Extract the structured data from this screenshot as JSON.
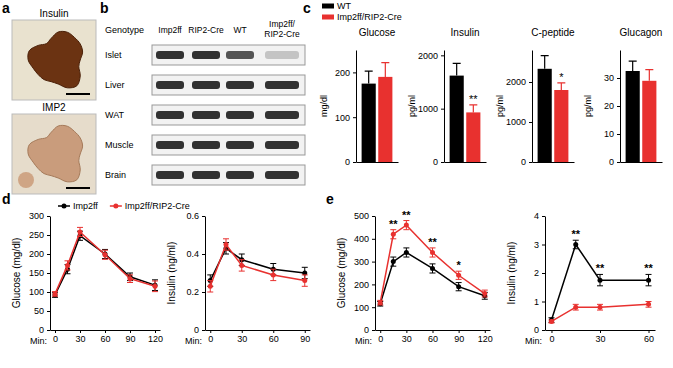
{
  "panel_labels": [
    "a",
    "b",
    "c",
    "d",
    "e"
  ],
  "histology": {
    "images": [
      {
        "title": "Insulin"
      },
      {
        "title": "IMP2"
      }
    ]
  },
  "blot": {
    "header": "Genotype",
    "columns": [
      "Imp2ff",
      "RIP2-Cre",
      "WT",
      "Imp2ff/RIP2-Cre"
    ],
    "rows": [
      {
        "tissue": "Islet",
        "band_intensity": [
          0.85,
          0.85,
          0.7,
          0.2
        ]
      },
      {
        "tissue": "Liver",
        "band_intensity": [
          0.85,
          0.85,
          0.85,
          0.85
        ]
      },
      {
        "tissue": "WAT",
        "band_intensity": [
          0.85,
          0.85,
          0.85,
          0.85
        ]
      },
      {
        "tissue": "Muscle",
        "band_intensity": [
          0.85,
          0.85,
          0.85,
          0.85
        ]
      },
      {
        "tissue": "Brain",
        "band_intensity": [
          0.85,
          0.85,
          0.85,
          0.85
        ]
      }
    ]
  },
  "chart_data": [
    {
      "type": "bar",
      "title": "Glucose",
      "ylabel": "mg/dl",
      "categories": [
        null
      ],
      "ylim": [
        0,
        250
      ],
      "yticks": [
        0,
        100,
        200
      ],
      "legend": "top",
      "series": [
        {
          "name": "WT",
          "color": "#000000",
          "values": [
            175
          ],
          "errors": [
            28
          ]
        },
        {
          "name": "Imp2ff/RIP2-Cre",
          "color": "#e8312f",
          "values": [
            190
          ],
          "errors": [
            32
          ]
        }
      ]
    },
    {
      "type": "bar",
      "title": "Insulin",
      "ylabel": "pg/ml",
      "categories": [
        null
      ],
      "ylim": [
        0,
        2100
      ],
      "yticks": [
        0,
        1000,
        2000
      ],
      "series": [
        {
          "color": "#000000",
          "values": [
            1620
          ],
          "errors": [
            230
          ]
        },
        {
          "color": "#e8312f",
          "values": [
            930
          ],
          "errors": [
            140
          ],
          "annotations": [
            "**"
          ]
        }
      ]
    },
    {
      "type": "bar",
      "title": "C-peptide",
      "ylabel": "pg/ml",
      "categories": [
        null
      ],
      "ylim": [
        0,
        2800
      ],
      "yticks": [
        0,
        1000,
        2000
      ],
      "series": [
        {
          "color": "#000000",
          "values": [
            2330
          ],
          "errors": [
            330
          ]
        },
        {
          "color": "#e8312f",
          "values": [
            1800
          ],
          "errors": [
            180
          ],
          "annotations": [
            "*"
          ]
        }
      ]
    },
    {
      "type": "bar",
      "title": "Glucagon",
      "ylabel": "pg/ml",
      "categories": [
        null
      ],
      "ylim": [
        0,
        40
      ],
      "yticks": [
        0,
        10,
        20,
        30
      ],
      "series": [
        {
          "color": "#000000",
          "values": [
            32.5
          ],
          "errors": [
            3.5
          ]
        },
        {
          "color": "#e8312f",
          "values": [
            29
          ],
          "errors": [
            4
          ]
        }
      ]
    },
    {
      "type": "line",
      "ylabel": "Glucose (mg/dl)",
      "xlabel": "Min:",
      "x": [
        0,
        15,
        30,
        60,
        90,
        120
      ],
      "xlim": [
        -6,
        126
      ],
      "xticks": [
        0,
        30,
        60,
        90,
        120
      ],
      "ylim": [
        0,
        300
      ],
      "yticks": [
        0,
        50,
        100,
        150,
        200,
        250,
        300
      ],
      "legend": "top",
      "marker": "circle",
      "series": [
        {
          "name": "Imp2ff",
          "color": "#000000",
          "values": [
            92,
            160,
            248,
            200,
            140,
            118
          ],
          "errors": [
            6,
            12,
            12,
            12,
            10,
            14
          ]
        },
        {
          "name": "Imp2ff/RIP2-Cre",
          "color": "#e8312f",
          "values": [
            95,
            170,
            258,
            198,
            135,
            115
          ],
          "errors": [
            6,
            12,
            12,
            12,
            10,
            14
          ]
        }
      ]
    },
    {
      "type": "line",
      "ylabel": "Insulin (ng/ml)",
      "xlabel": "Min:",
      "x": [
        0,
        15,
        30,
        60,
        90
      ],
      "xlim": [
        -5,
        95
      ],
      "xticks": [
        0,
        30,
        60,
        90
      ],
      "ylim": [
        0,
        0.6
      ],
      "yticks": [
        0,
        0.2,
        0.4,
        0.6
      ],
      "marker": "circle",
      "series": [
        {
          "color": "#000000",
          "values": [
            0.26,
            0.43,
            0.37,
            0.32,
            0.3
          ],
          "errors": [
            0.03,
            0.03,
            0.03,
            0.03,
            0.03
          ]
        },
        {
          "color": "#e8312f",
          "values": [
            0.23,
            0.45,
            0.34,
            0.29,
            0.26
          ],
          "errors": [
            0.03,
            0.03,
            0.03,
            0.03,
            0.03
          ]
        }
      ]
    },
    {
      "type": "line",
      "ylabel": "Glucose (mg/dl)",
      "xlabel": "Min:",
      "x": [
        0,
        15,
        30,
        60,
        90,
        120
      ],
      "xlim": [
        -6,
        126
      ],
      "xticks": [
        0,
        30,
        60,
        90,
        120
      ],
      "ylim": [
        0,
        500
      ],
      "yticks": [
        0,
        100,
        200,
        300,
        400,
        500
      ],
      "marker": "circle",
      "series": [
        {
          "color": "#000000",
          "values": [
            115,
            300,
            340,
            270,
            190,
            150
          ],
          "errors": [
            10,
            20,
            20,
            20,
            18,
            15
          ]
        },
        {
          "color": "#e8312f",
          "values": [
            120,
            420,
            460,
            340,
            240,
            160
          ],
          "errors": [
            10,
            20,
            20,
            20,
            18,
            15
          ],
          "annotations": [
            null,
            "**",
            "**",
            "**",
            "*",
            null
          ]
        }
      ]
    },
    {
      "type": "line",
      "ylabel": "Insulin (ng/ml)",
      "xlabel": "Min:",
      "x": [
        0,
        15,
        30,
        60
      ],
      "xlim": [
        -4,
        64
      ],
      "xticks": [
        0,
        30,
        60
      ],
      "ylim": [
        0,
        4
      ],
      "yticks": [
        0,
        1,
        2,
        3,
        4
      ],
      "marker": "circle",
      "series": [
        {
          "color": "#000000",
          "values": [
            0.35,
            3.0,
            1.75,
            1.75
          ],
          "errors": [
            0.08,
            0.15,
            0.2,
            0.2
          ]
        },
        {
          "color": "#e8312f",
          "values": [
            0.3,
            0.8,
            0.8,
            0.9
          ],
          "errors": [
            0.05,
            0.1,
            0.1,
            0.1
          ],
          "annotations": [
            null,
            "**",
            "**",
            "**"
          ]
        }
      ]
    }
  ]
}
